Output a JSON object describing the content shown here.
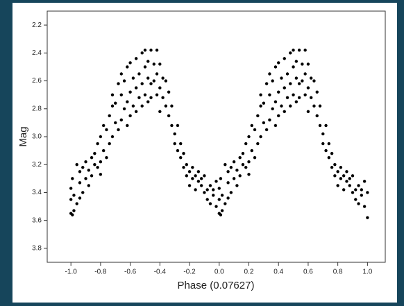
{
  "chart_data": {
    "type": "scatter",
    "xlabel": "Phase (0.07627)",
    "ylabel": "Mag",
    "color": "#000000",
    "xlim": [
      -1.16,
      1.12
    ],
    "xticks": [
      {
        "value": -1,
        "label": "-1.0"
      },
      -0.8,
      -0.6,
      -0.4,
      -0.2,
      {
        "value": 0,
        "label": "0.0"
      },
      0.2,
      0.4,
      0.6,
      0.8,
      {
        "value": 1,
        "label": "1.0"
      }
    ],
    "ylim": [
      3.9,
      2.1
    ],
    "yticks": [
      2.2,
      2.4,
      2.6,
      2.8,
      {
        "value": 3,
        "label": "3.0"
      },
      3.2,
      3.4,
      3.6,
      3.8
    ],
    "x": [
      -1,
      -1,
      -1,
      -0.99,
      -0.99,
      -0.98,
      -0.98,
      -0.96,
      -0.96,
      -0.94,
      -0.94,
      -0.94,
      -0.92,
      -0.92,
      -0.9,
      -0.9,
      -0.88,
      -0.88,
      -0.86,
      -0.86,
      -0.84,
      -0.84,
      -0.82,
      -0.82,
      -0.8,
      -0.8,
      -0.8,
      -0.78,
      -0.78,
      -0.76,
      -0.76,
      -0.74,
      -0.74,
      -0.72,
      -0.72,
      -0.72,
      -0.7,
      -0.7,
      -0.68,
      -0.68,
      -0.66,
      -0.66,
      -0.66,
      -0.64,
      -0.64,
      -0.62,
      -0.62,
      -0.62,
      -0.6,
      -0.6,
      -0.6,
      -0.58,
      -0.58,
      -0.56,
      -0.56,
      -0.56,
      -0.54,
      -0.54,
      -0.52,
      -0.52,
      -0.52,
      -0.5,
      -0.5,
      -0.5,
      -0.48,
      -0.48,
      -0.48,
      -0.46,
      -0.46,
      -0.46,
      -0.44,
      -0.44,
      -0.42,
      -0.42,
      -0.42,
      -0.4,
      -0.4,
      -0.4,
      -0.38,
      -0.38,
      -0.36,
      -0.36,
      -0.34,
      -0.34,
      -0.32,
      -0.32,
      -0.3,
      -0.3,
      -0.28,
      -0.28,
      -0.26,
      -0.26,
      -0.24,
      -0.24,
      -0.22,
      -0.22,
      -0.2,
      -0.2,
      -0.18,
      -0.18,
      -0.16,
      -0.16,
      -0.14,
      -0.14,
      -0.12,
      -0.12,
      -0.1,
      -0.1,
      -0.08,
      -0.08,
      -0.06,
      -0.06,
      -0.04,
      -0.04,
      -0.02,
      -0.02,
      0,
      0,
      0,
      0.01,
      0.01,
      0.02,
      0.02,
      0.04,
      0.04,
      0.06,
      0.06,
      0.06,
      0.08,
      0.08,
      0.1,
      0.1,
      0.12,
      0.12,
      0.14,
      0.14,
      0.16,
      0.16,
      0.18,
      0.18,
      0.2,
      0.2,
      0.2,
      0.22,
      0.22,
      0.24,
      0.24,
      0.26,
      0.26,
      0.28,
      0.28,
      0.28,
      0.3,
      0.3,
      0.32,
      0.32,
      0.34,
      0.34,
      0.34,
      0.36,
      0.36,
      0.38,
      0.38,
      0.38,
      0.4,
      0.4,
      0.4,
      0.42,
      0.42,
      0.44,
      0.44,
      0.44,
      0.46,
      0.46,
      0.48,
      0.48,
      0.48,
      0.5,
      0.5,
      0.5,
      0.52,
      0.52,
      0.52,
      0.54,
      0.54,
      0.54,
      0.56,
      0.56,
      0.58,
      0.58,
      0.58,
      0.6,
      0.6,
      0.6,
      0.62,
      0.62,
      0.64,
      0.64,
      0.66,
      0.66,
      0.68,
      0.68,
      0.7,
      0.7,
      0.72,
      0.72,
      0.74,
      0.74,
      0.76,
      0.76,
      0.78,
      0.78,
      0.8,
      0.8,
      0.82,
      0.82,
      0.84,
      0.84,
      0.86,
      0.86,
      0.88,
      0.88,
      0.9,
      0.9,
      0.92,
      0.92,
      0.94,
      0.94,
      0.96,
      0.96,
      0.98,
      0.98,
      1,
      1
    ],
    "values": [
      3.37,
      3.55,
      3.45,
      3.56,
      3.3,
      3.42,
      3.53,
      3.2,
      3.48,
      3.33,
      3.44,
      3.25,
      3.4,
      3.22,
      3.3,
      3.18,
      3.35,
      3.24,
      3.15,
      3.28,
      3.2,
      3.12,
      3.22,
      3.05,
      3.18,
      3.0,
      3.27,
      3.1,
      2.92,
      3.15,
      2.95,
      2.85,
      3.05,
      2.78,
      3.0,
      2.7,
      2.9,
      2.76,
      2.62,
      2.95,
      2.7,
      2.88,
      2.55,
      2.8,
      2.6,
      2.5,
      2.75,
      2.92,
      2.68,
      2.85,
      2.47,
      2.58,
      2.78,
      2.44,
      2.65,
      2.82,
      2.72,
      2.55,
      2.4,
      2.62,
      2.78,
      2.5,
      2.7,
      2.38,
      2.58,
      2.75,
      2.46,
      2.38,
      2.62,
      2.72,
      2.48,
      2.6,
      2.7,
      2.38,
      2.55,
      2.48,
      2.65,
      2.82,
      2.72,
      2.58,
      2.78,
      2.6,
      2.85,
      2.68,
      2.92,
      2.78,
      2.98,
      3.05,
      2.92,
      3.1,
      3.05,
      3.15,
      3.12,
      3.22,
      3.2,
      3.28,
      3.25,
      3.35,
      3.22,
      3.3,
      3.28,
      3.38,
      3.25,
      3.32,
      3.35,
      3.3,
      3.4,
      3.28,
      3.38,
      3.45,
      3.35,
      3.48,
      3.42,
      3.38,
      3.5,
      3.32,
      3.37,
      3.55,
      3.45,
      3.56,
      3.3,
      3.42,
      3.53,
      3.2,
      3.48,
      3.33,
      3.44,
      3.25,
      3.4,
      3.22,
      3.3,
      3.18,
      3.35,
      3.24,
      3.15,
      3.28,
      3.2,
      3.12,
      3.22,
      3.05,
      3.18,
      3.0,
      3.27,
      3.1,
      2.92,
      3.15,
      2.95,
      2.85,
      3.05,
      2.78,
      3.0,
      2.7,
      2.9,
      2.76,
      2.62,
      2.95,
      2.7,
      2.88,
      2.55,
      2.8,
      2.6,
      2.5,
      2.75,
      2.92,
      2.68,
      2.85,
      2.47,
      2.58,
      2.78,
      2.44,
      2.65,
      2.82,
      2.72,
      2.55,
      2.4,
      2.62,
      2.78,
      2.5,
      2.7,
      2.38,
      2.58,
      2.75,
      2.46,
      2.38,
      2.62,
      2.72,
      2.48,
      2.6,
      2.7,
      2.38,
      2.55,
      2.48,
      2.65,
      2.82,
      2.72,
      2.58,
      2.78,
      2.6,
      2.85,
      2.68,
      2.92,
      2.78,
      2.98,
      3.05,
      2.92,
      3.1,
      3.05,
      3.15,
      3.12,
      3.22,
      3.2,
      3.28,
      3.25,
      3.35,
      3.22,
      3.3,
      3.28,
      3.38,
      3.25,
      3.32,
      3.35,
      3.3,
      3.4,
      3.28,
      3.38,
      3.45,
      3.35,
      3.48,
      3.42,
      3.38,
      3.5,
      3.32,
      3.58,
      3.4
    ]
  }
}
